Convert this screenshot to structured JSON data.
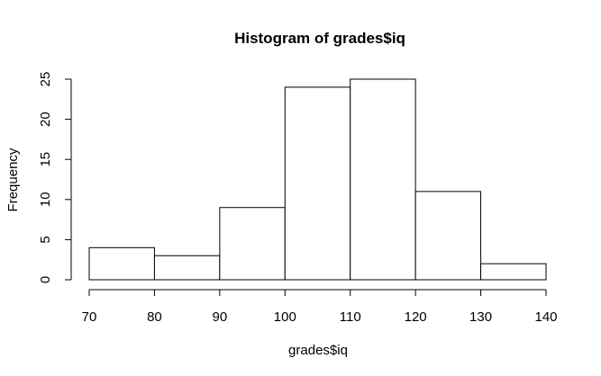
{
  "chart_data": {
    "type": "bar",
    "title": "Histogram of grades$iq",
    "xlabel": "grades$iq",
    "ylabel": "Frequency",
    "bins": [
      {
        "start": 70,
        "end": 80,
        "count": 4
      },
      {
        "start": 80,
        "end": 90,
        "count": 3
      },
      {
        "start": 90,
        "end": 100,
        "count": 9
      },
      {
        "start": 100,
        "end": 110,
        "count": 24
      },
      {
        "start": 110,
        "end": 120,
        "count": 25
      },
      {
        "start": 120,
        "end": 130,
        "count": 11
      },
      {
        "start": 130,
        "end": 140,
        "count": 2
      }
    ],
    "xlim": [
      70,
      140
    ],
    "ylim": [
      0,
      25
    ],
    "x_ticks": [
      70,
      80,
      90,
      100,
      110,
      120,
      130,
      140
    ],
    "y_ticks": [
      0,
      5,
      10,
      15,
      20,
      25
    ],
    "grid": false,
    "colors": {
      "bar_fill": "#ffffff",
      "bar_stroke": "#000000"
    }
  }
}
